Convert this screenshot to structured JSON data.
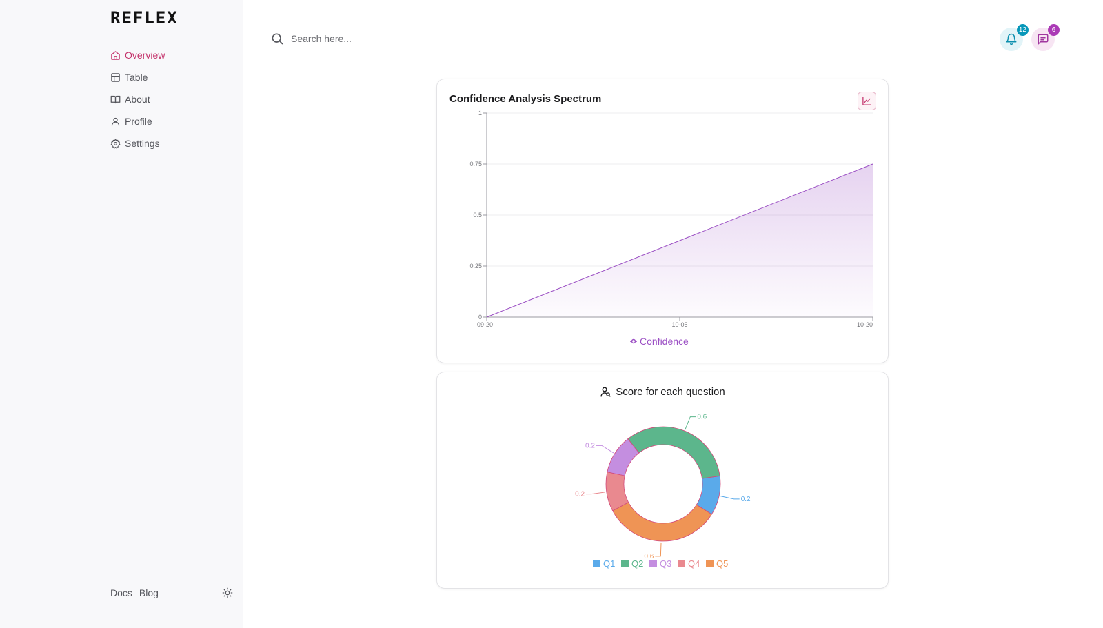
{
  "app": {
    "logo": "REFLEX"
  },
  "sidebar": {
    "items": [
      {
        "label": "Overview",
        "icon": "home-icon",
        "active": true
      },
      {
        "label": "Table",
        "icon": "table-icon"
      },
      {
        "label": "About",
        "icon": "book-icon"
      },
      {
        "label": "Profile",
        "icon": "user-icon"
      },
      {
        "label": "Settings",
        "icon": "gear-icon"
      }
    ],
    "footer": {
      "docs": "Docs",
      "blog": "Blog",
      "theme_icon": "sun-icon"
    }
  },
  "header": {
    "search_placeholder": "Search here...",
    "notifications_count": "12",
    "messages_count": "6"
  },
  "colors": {
    "accent": "#c4336b",
    "line": "#9b4fc4",
    "q1": "#5aaaea",
    "q2": "#5cb68c",
    "q3": "#c48ee0",
    "q4": "#e9898f",
    "q5": "#ef9455"
  },
  "area_card": {
    "title": "Confidence Analysis Spectrum"
  },
  "pie_card": {
    "title": "Score for each question"
  },
  "chart_data": [
    {
      "type": "area",
      "title": "Confidence Analysis Spectrum",
      "x": [
        "09-20",
        "10-05",
        "10-20"
      ],
      "series": [
        {
          "name": "Confidence",
          "values": [
            0,
            0.375,
            0.75
          ]
        }
      ],
      "yticks": [
        "0",
        "0.25",
        "0.5",
        "0.75",
        "1"
      ],
      "ylim": [
        0,
        1
      ],
      "grid": true,
      "legend": "bottom"
    },
    {
      "type": "pie",
      "title": "Score for each question",
      "donut": true,
      "categories": [
        "Q1",
        "Q2",
        "Q3",
        "Q4",
        "Q5"
      ],
      "values": [
        0.2,
        0.6,
        0.2,
        0.2,
        0.6
      ],
      "labels": [
        "0.2",
        "0.6",
        "0.2",
        "0.2",
        "0.6"
      ],
      "legend": "bottom"
    }
  ]
}
